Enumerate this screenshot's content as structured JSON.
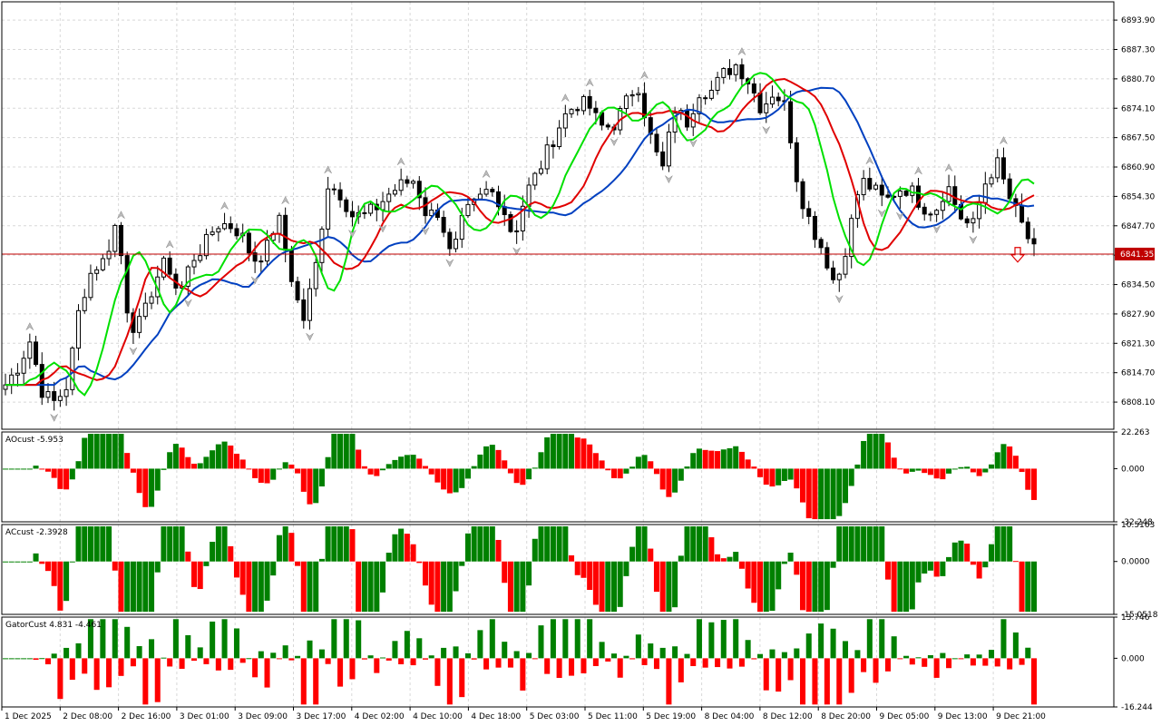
{
  "chart_data": [
    {
      "type": "candlestick",
      "title": "",
      "current_price": "6841.35",
      "y_ticks": [
        "6893.90",
        "6887.30",
        "6880.70",
        "6874.10",
        "6867.50",
        "6860.90",
        "6854.30",
        "6847.70",
        "6841.10",
        "6834.50",
        "6827.90",
        "6821.30",
        "6814.70",
        "6808.10"
      ],
      "ylim": [
        6802,
        6898
      ],
      "close_path": [
        6812,
        6816,
        6822,
        6810,
        6808,
        6812,
        6830,
        6838,
        6840,
        6849,
        6825,
        6826,
        6835,
        6840,
        6832,
        6840,
        6843,
        6848,
        6848,
        6846,
        6840,
        6842,
        6850,
        6837,
        6826,
        6838,
        6857,
        6855,
        6850,
        6850,
        6852,
        6855,
        6857,
        6858,
        6850,
        6851,
        6840,
        6850,
        6853,
        6856,
        6853,
        6845,
        6855,
        6860,
        6866,
        6872,
        6875,
        6875,
        6870,
        6870,
        6875,
        6880,
        6868,
        6860,
        6874,
        6871,
        6878,
        6878,
        6882,
        6884,
        6880,
        6874,
        6878,
        6874,
        6856,
        6848,
        6842,
        6834,
        6845,
        6858,
        6856,
        6853,
        6856,
        6856,
        6852,
        6851,
        6857,
        6850,
        6847,
        6857,
        6862,
        6854,
        6848,
        6842
      ],
      "candle_count": 170,
      "ma_fast_color": "#00e000",
      "ma_mid_color": "#e00000",
      "ma_slow_color": "#0040c0",
      "signal": "down-arrow"
    },
    {
      "type": "bar",
      "label": "AOcust -5.953",
      "ylim": [
        -32.248,
        22.263
      ],
      "y_ticks": [
        "22.263",
        "0.000",
        "-32.248"
      ],
      "pos_color": "#008000",
      "neg_color": "#ff0000"
    },
    {
      "type": "bar",
      "label": "ACcust -2.3928",
      "ylim": [
        -15.0518,
        10.5163
      ],
      "y_ticks": [
        "10.5163",
        "0.0000",
        "-15.0518"
      ],
      "pos_color": "#008000",
      "neg_color": "#ff0000"
    },
    {
      "type": "bar",
      "label": "GatorCust 4.831 -4.461",
      "ylim": [
        -16.244,
        13.746
      ],
      "y_ticks": [
        "13.746",
        "0.000",
        "-16.244"
      ],
      "pos_color": "#008000",
      "neg_color": "#ff0000"
    }
  ],
  "x_ticks": [
    "1 Dec 2025",
    "2 Dec 08:00",
    "2 Dec 16:00",
    "3 Dec 01:00",
    "3 Dec 09:00",
    "3 Dec 17:00",
    "4 Dec 02:00",
    "4 Dec 10:00",
    "4 Dec 18:00",
    "5 Dec 03:00",
    "5 Dec 11:00",
    "5 Dec 19:00",
    "8 Dec 04:00",
    "8 Dec 12:00",
    "8 Dec 20:00",
    "9 Dec 05:00",
    "9 Dec 13:00",
    "9 Dec 21:00"
  ],
  "colors": {
    "grid": "#d8d8d8",
    "price_line": "#c00000",
    "frame": "#000000",
    "price_box": "#c00000"
  }
}
